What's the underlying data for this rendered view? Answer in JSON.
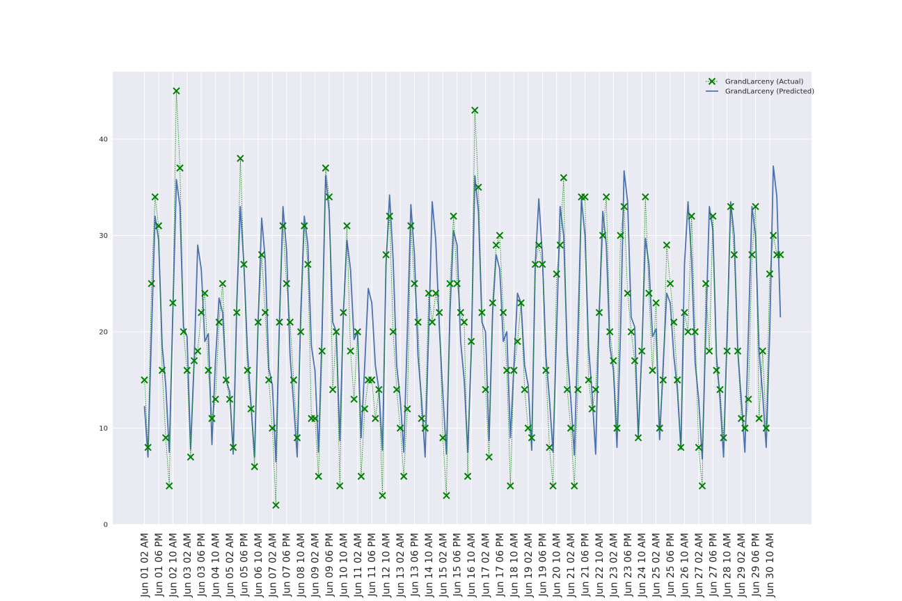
{
  "chart_data": {
    "type": "line",
    "title": "",
    "xlabel": "",
    "ylabel": "",
    "ylim": [
      0,
      47
    ],
    "yticks": [
      0,
      10,
      20,
      30,
      40
    ],
    "grid": true,
    "legend_position": "top-right",
    "x_tick_labels": [
      "Jun 01 02 AM",
      "Jun 01 06 PM",
      "Jun 02 10 AM",
      "Jun 03 02 AM",
      "Jun 03 06 PM",
      "Jun 04 10 AM",
      "Jun 05 02 AM",
      "Jun 05 06 PM",
      "Jun 06 10 AM",
      "Jun 07 02 AM",
      "Jun 07 06 PM",
      "Jun 08 10 AM",
      "Jun 09 02 AM",
      "Jun 09 06 PM",
      "Jun 10 10 AM",
      "Jun 11 02 AM",
      "Jun 11 06 PM",
      "Jun 12 10 AM",
      "Jun 13 02 AM",
      "Jun 13 06 PM",
      "Jun 14 10 AM",
      "Jun 15 02 AM",
      "Jun 15 06 PM",
      "Jun 16 10 AM",
      "Jun 17 02 AM",
      "Jun 17 06 PM",
      "Jun 18 10 AM",
      "Jun 19 02 AM",
      "Jun 19 06 PM",
      "Jun 20 10 AM",
      "Jun 21 02 AM",
      "Jun 21 06 PM",
      "Jun 22 10 AM",
      "Jun 23 02 AM",
      "Jun 23 06 PM",
      "Jun 24 10 AM",
      "Jun 25 02 AM",
      "Jun 25 06 PM",
      "Jun 26 10 AM",
      "Jun 27 02 AM",
      "Jun 27 06 PM",
      "Jun 28 10 AM",
      "Jun 29 02 AM",
      "Jun 29 06 PM",
      "Jun 30 10 AM"
    ],
    "x_interval_hours": 4,
    "series": [
      {
        "name": "GrandLarceny (Actual)",
        "color": "#008000",
        "marker": "x",
        "style": "dotted",
        "values": [
          15,
          8,
          25,
          34,
          31,
          16,
          9,
          4,
          23,
          45,
          37,
          20,
          16,
          7,
          17,
          18,
          22,
          24,
          16,
          11,
          13,
          21,
          25,
          15,
          13,
          8,
          22,
          38,
          27,
          16,
          12,
          6,
          21,
          28,
          22,
          15,
          10,
          2,
          21,
          31,
          25,
          21,
          15,
          9,
          20,
          31,
          27,
          11,
          11,
          5,
          18,
          37,
          34,
          14,
          20,
          4,
          22,
          31,
          18,
          13,
          20,
          5,
          12,
          15,
          15,
          11,
          14,
          3,
          28,
          32,
          20,
          14,
          10,
          5,
          12,
          31,
          25,
          21,
          11,
          10,
          24,
          21,
          24,
          22,
          9,
          3,
          25,
          32,
          25,
          22,
          21,
          5,
          19,
          43,
          35,
          22,
          14,
          7,
          23,
          29,
          30,
          22,
          16,
          4,
          16,
          19,
          23,
          14,
          10,
          9,
          27,
          29,
          27,
          16,
          8,
          4,
          26,
          29,
          36,
          14,
          10,
          4,
          14,
          34,
          34,
          15,
          12,
          14,
          22,
          30,
          34,
          20,
          17,
          10,
          30,
          33,
          24,
          20,
          17,
          9,
          18,
          34,
          24,
          16,
          23,
          10,
          15,
          29,
          25,
          21,
          15,
          8,
          22,
          20,
          32,
          20,
          8,
          4,
          25,
          18,
          32,
          16,
          14,
          9,
          18,
          33,
          28,
          18,
          11,
          10,
          13,
          28,
          33,
          11,
          18,
          10,
          26,
          30,
          28,
          28
        ]
      },
      {
        "name": "GrandLarceny (Predicted)",
        "color": "#4c72b0",
        "marker": "none",
        "style": "solid",
        "values": [
          12.3,
          7,
          20,
          32,
          29.5,
          18.5,
          14.5,
          7.5,
          22,
          35.8,
          33,
          20.5,
          19.5,
          7.8,
          17,
          29,
          26.5,
          19,
          19.8,
          8.3,
          17,
          23.5,
          22,
          15,
          13.8,
          7.3,
          23,
          33,
          27,
          18,
          12.5,
          7,
          21,
          31.8,
          27.5,
          16.2,
          14.5,
          6.5,
          21,
          33,
          28.5,
          17.5,
          12.5,
          7,
          22,
          32,
          29,
          18.5,
          16,
          7.5,
          20,
          36.2,
          32.5,
          21,
          20,
          8.7,
          22,
          29.5,
          26.5,
          19.2,
          20,
          9,
          16.5,
          24.5,
          23,
          16.5,
          14,
          7.7,
          27,
          34.2,
          27.5,
          16.5,
          13,
          7.5,
          20,
          33.2,
          28,
          17.5,
          13,
          7,
          20,
          33.5,
          29.5,
          20.5,
          13.5,
          7.3,
          22,
          30.5,
          29,
          19,
          15,
          7.5,
          18,
          36.2,
          32.5,
          21,
          20,
          8.7,
          22,
          28,
          26.5,
          19,
          20,
          9,
          16.5,
          24,
          23,
          16.5,
          14.5,
          7.7,
          27,
          33.8,
          28,
          17.5,
          13,
          7.5,
          20,
          33,
          30,
          18,
          13,
          7.2,
          20,
          33.8,
          30,
          18.5,
          13.5,
          7.3,
          22,
          32.5,
          29,
          18.5,
          16,
          8,
          20,
          36.7,
          33.5,
          21.5,
          20.5,
          9,
          18,
          29.7,
          27,
          19.5,
          20.3,
          8.8,
          16.5,
          24,
          23,
          17.5,
          14,
          7.8,
          27,
          33.5,
          27.5,
          16.8,
          13,
          6.8,
          20,
          33,
          30.5,
          17.5,
          13,
          7,
          20,
          33.5,
          30,
          18,
          13,
          7.5,
          20,
          33,
          30,
          18,
          13.5,
          8,
          20,
          37.2,
          34,
          21.5
        ]
      }
    ]
  }
}
